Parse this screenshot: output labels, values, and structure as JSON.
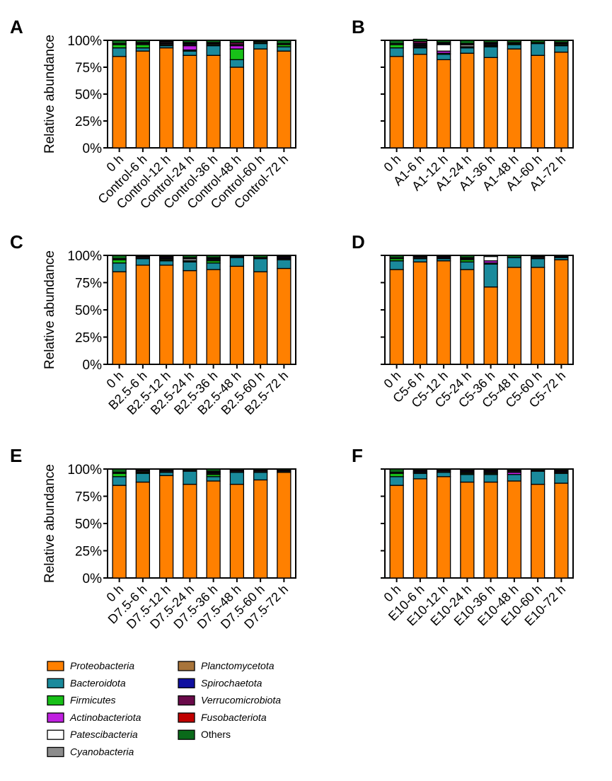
{
  "chart_data": [
    {
      "type": "bar",
      "panel": "A",
      "ylabel": "Relative abundance",
      "yticks": [
        "0%",
        "25%",
        "50%",
        "75%",
        "100%"
      ],
      "ylim": [
        0,
        100
      ],
      "categories": [
        "0 h",
        "Control-6 h",
        "Control-12 h",
        "Control-24 h",
        "Control-36 h",
        "Control-48 h",
        "Control-60 h",
        "Control-72 h"
      ],
      "series": [
        {
          "name": "Proteobacteria",
          "values": [
            85,
            90,
            93,
            86,
            86,
            75,
            92,
            90
          ]
        },
        {
          "name": "Bacteroidota",
          "values": [
            8,
            3,
            2,
            4,
            9,
            7,
            5,
            4
          ]
        },
        {
          "name": "Firmicutes",
          "values": [
            3,
            3,
            1,
            1,
            1,
            10,
            1,
            2
          ]
        },
        {
          "name": "Actinobacteriota",
          "values": [
            0,
            0,
            1,
            4,
            0,
            3,
            0,
            0
          ]
        },
        {
          "name": "Patescibacteria",
          "values": [
            0,
            0,
            0,
            0,
            0,
            0,
            0,
            0
          ]
        },
        {
          "name": "Cyanobacteria",
          "values": [
            1,
            1,
            1,
            1,
            1,
            1,
            1,
            1
          ]
        },
        {
          "name": "Planctomycetota",
          "values": [
            0,
            0,
            0,
            0,
            0,
            0,
            0,
            0
          ]
        },
        {
          "name": "Spirochaetota",
          "values": [
            0,
            0,
            0,
            1,
            0,
            0,
            0,
            0
          ]
        },
        {
          "name": "Verrucomicrobiota",
          "values": [
            0,
            1,
            1,
            1,
            1,
            2,
            0,
            0
          ]
        },
        {
          "name": "Fusobacteriota",
          "values": [
            0,
            0,
            0,
            0,
            0,
            0,
            0,
            0
          ]
        },
        {
          "name": "Others",
          "values": [
            3,
            2,
            1,
            2,
            2,
            2,
            1,
            3
          ]
        }
      ]
    },
    {
      "type": "bar",
      "panel": "B",
      "ylabel": "",
      "yticks": [],
      "ylim": [
        0,
        100
      ],
      "categories": [
        "0 h",
        "A1-6 h",
        "A1-12 h",
        "A1-24 h",
        "A1-36 h",
        "A1-48 h",
        "A1-60 h",
        "A1-72 h"
      ],
      "series": [
        {
          "name": "Proteobacteria",
          "values": [
            85,
            87,
            82,
            88,
            84,
            92,
            86,
            89
          ]
        },
        {
          "name": "Bacteroidota",
          "values": [
            8,
            6,
            5,
            5,
            10,
            4,
            11,
            6
          ]
        },
        {
          "name": "Firmicutes",
          "values": [
            3,
            1,
            1,
            1,
            1,
            1,
            1,
            1
          ]
        },
        {
          "name": "Actinobacteriota",
          "values": [
            0,
            1,
            2,
            0,
            0,
            0,
            0,
            0
          ]
        },
        {
          "name": "Patescibacteria",
          "values": [
            0,
            0,
            6,
            0,
            0,
            0,
            0,
            0
          ]
        },
        {
          "name": "Cyanobacteria",
          "values": [
            1,
            1,
            0,
            2,
            1,
            1,
            0,
            1
          ]
        },
        {
          "name": "Planctomycetota",
          "values": [
            0,
            0,
            0,
            0,
            0,
            0,
            0,
            0
          ]
        },
        {
          "name": "Spirochaetota",
          "values": [
            0,
            1,
            1,
            0,
            1,
            0,
            0,
            0
          ]
        },
        {
          "name": "Verrucomicrobiota",
          "values": [
            0,
            2,
            1,
            1,
            1,
            0,
            0,
            1
          ]
        },
        {
          "name": "Fusobacteriota",
          "values": [
            0,
            0,
            0,
            0,
            0,
            0,
            0,
            0
          ]
        },
        {
          "name": "Others",
          "values": [
            3,
            2,
            2,
            3,
            2,
            2,
            2,
            2
          ]
        }
      ]
    },
    {
      "type": "bar",
      "panel": "C",
      "ylabel": "Relative abundance",
      "yticks": [
        "0%",
        "25%",
        "50%",
        "75%",
        "100%"
      ],
      "ylim": [
        0,
        100
      ],
      "categories": [
        "0 h",
        "B2.5-6 h",
        "B2.5-12 h",
        "B2.5-24 h",
        "B2.5-36 h",
        "B2.5-48 h",
        "B2.5-60 h",
        "B2.5-72 h"
      ],
      "series": [
        {
          "name": "Proteobacteria",
          "values": [
            85,
            91,
            91,
            86,
            87,
            90,
            85,
            88
          ]
        },
        {
          "name": "Bacteroidota",
          "values": [
            8,
            6,
            4,
            8,
            6,
            8,
            12,
            8
          ]
        },
        {
          "name": "Firmicutes",
          "values": [
            3,
            0,
            1,
            1,
            2,
            0,
            0,
            0
          ]
        },
        {
          "name": "Actinobacteriota",
          "values": [
            0,
            0,
            0,
            0,
            0,
            0,
            0,
            0
          ]
        },
        {
          "name": "Patescibacteria",
          "values": [
            0,
            0,
            0,
            0,
            0,
            0,
            0,
            0
          ]
        },
        {
          "name": "Cyanobacteria",
          "values": [
            1,
            1,
            1,
            2,
            1,
            0,
            0,
            1
          ]
        },
        {
          "name": "Planctomycetota",
          "values": [
            0,
            0,
            0,
            0,
            0,
            0,
            0,
            0
          ]
        },
        {
          "name": "Spirochaetota",
          "values": [
            0,
            0,
            1,
            0,
            1,
            0,
            0,
            1
          ]
        },
        {
          "name": "Verrucomicrobiota",
          "values": [
            0,
            1,
            1,
            1,
            1,
            1,
            1,
            1
          ]
        },
        {
          "name": "Fusobacteriota",
          "values": [
            0,
            0,
            0,
            0,
            0,
            0,
            0,
            0
          ]
        },
        {
          "name": "Others",
          "values": [
            3,
            1,
            1,
            2,
            2,
            1,
            2,
            1
          ]
        }
      ]
    },
    {
      "type": "bar",
      "panel": "D",
      "ylabel": "",
      "yticks": [],
      "ylim": [
        0,
        100
      ],
      "categories": [
        "0 h",
        "C5-6 h",
        "C5-12 h",
        "C5-24 h",
        "C5-36 h",
        "C5-48 h",
        "C5-60 h",
        "C5-72 h"
      ],
      "series": [
        {
          "name": "Proteobacteria",
          "values": [
            87,
            94,
            95,
            87,
            71,
            89,
            89,
            96
          ]
        },
        {
          "name": "Bacteroidota",
          "values": [
            8,
            3,
            2,
            7,
            21,
            9,
            8,
            2
          ]
        },
        {
          "name": "Firmicutes",
          "values": [
            2,
            0,
            0,
            2,
            1,
            0,
            0,
            0
          ]
        },
        {
          "name": "Actinobacteriota",
          "values": [
            0,
            0,
            0,
            0,
            2,
            0,
            0,
            0
          ]
        },
        {
          "name": "Patescibacteria",
          "values": [
            0,
            0,
            0,
            0,
            4,
            0,
            0,
            0
          ]
        },
        {
          "name": "Cyanobacteria",
          "values": [
            1,
            1,
            0,
            1,
            0,
            0,
            1,
            0
          ]
        },
        {
          "name": "Planctomycetota",
          "values": [
            0,
            0,
            0,
            0,
            0,
            0,
            0,
            0
          ]
        },
        {
          "name": "Spirochaetota",
          "values": [
            0,
            0,
            1,
            0,
            0,
            0,
            0,
            0
          ]
        },
        {
          "name": "Verrucomicrobiota",
          "values": [
            0,
            1,
            1,
            1,
            0,
            0,
            1,
            1
          ]
        },
        {
          "name": "Fusobacteriota",
          "values": [
            0,
            0,
            0,
            0,
            0,
            0,
            0,
            0
          ]
        },
        {
          "name": "Others",
          "values": [
            2,
            1,
            1,
            2,
            1,
            2,
            1,
            1
          ]
        }
      ]
    },
    {
      "type": "bar",
      "panel": "E",
      "ylabel": "Relative abundance",
      "yticks": [
        "0%",
        "25%",
        "50%",
        "75%",
        "100%"
      ],
      "ylim": [
        0,
        100
      ],
      "categories": [
        "0 h",
        "D7.5-6 h",
        "D7.5-12 h",
        "D7.5-24 h",
        "D7.5-36 h",
        "D7.5-48 h",
        "D7.5-60 h",
        "D7.5-72 h"
      ],
      "series": [
        {
          "name": "Proteobacteria",
          "values": [
            85,
            88,
            94,
            86,
            89,
            86,
            90,
            97
          ]
        },
        {
          "name": "Bacteroidota",
          "values": [
            8,
            8,
            3,
            12,
            4,
            11,
            7,
            1
          ]
        },
        {
          "name": "Firmicutes",
          "values": [
            3,
            1,
            0,
            0,
            2,
            0,
            0,
            0
          ]
        },
        {
          "name": "Actinobacteriota",
          "values": [
            0,
            0,
            0,
            0,
            0,
            0,
            0,
            0
          ]
        },
        {
          "name": "Patescibacteria",
          "values": [
            0,
            0,
            0,
            0,
            0,
            0,
            0,
            0
          ]
        },
        {
          "name": "Cyanobacteria",
          "values": [
            1,
            1,
            1,
            1,
            1,
            1,
            1,
            0
          ]
        },
        {
          "name": "Planctomycetota",
          "values": [
            0,
            0,
            0,
            0,
            0,
            0,
            0,
            0
          ]
        },
        {
          "name": "Spirochaetota",
          "values": [
            0,
            0,
            0,
            0,
            1,
            0,
            0,
            0
          ]
        },
        {
          "name": "Verrucomicrobiota",
          "values": [
            0,
            1,
            1,
            0,
            1,
            1,
            1,
            1
          ]
        },
        {
          "name": "Fusobacteriota",
          "values": [
            0,
            0,
            0,
            0,
            0,
            0,
            0,
            0
          ]
        },
        {
          "name": "Others",
          "values": [
            3,
            1,
            1,
            1,
            2,
            1,
            1,
            1
          ]
        }
      ]
    },
    {
      "type": "bar",
      "panel": "F",
      "ylabel": "",
      "yticks": [],
      "ylim": [
        0,
        100
      ],
      "categories": [
        "0 h",
        "E10-6 h",
        "E10-12 h",
        "E10-24 h",
        "E10-36 h",
        "E10-48 h",
        "E10-60 h",
        "E10-72 h"
      ],
      "series": [
        {
          "name": "Proteobacteria",
          "values": [
            85,
            91,
            93,
            88,
            88,
            89,
            86,
            87
          ]
        },
        {
          "name": "Bacteroidota",
          "values": [
            8,
            5,
            4,
            7,
            7,
            6,
            12,
            9
          ]
        },
        {
          "name": "Firmicutes",
          "values": [
            3,
            0,
            0,
            1,
            1,
            0,
            0,
            0
          ]
        },
        {
          "name": "Actinobacteriota",
          "values": [
            0,
            0,
            0,
            0,
            0,
            2,
            0,
            0
          ]
        },
        {
          "name": "Patescibacteria",
          "values": [
            0,
            0,
            0,
            0,
            0,
            0,
            0,
            0
          ]
        },
        {
          "name": "Cyanobacteria",
          "values": [
            1,
            1,
            1,
            1,
            1,
            1,
            0,
            1
          ]
        },
        {
          "name": "Planctomycetota",
          "values": [
            0,
            0,
            0,
            0,
            0,
            0,
            0,
            0
          ]
        },
        {
          "name": "Spirochaetota",
          "values": [
            0,
            1,
            0,
            1,
            1,
            0,
            0,
            1
          ]
        },
        {
          "name": "Verrucomicrobiota",
          "values": [
            0,
            1,
            1,
            1,
            1,
            1,
            1,
            1
          ]
        },
        {
          "name": "Fusobacteriota",
          "values": [
            0,
            0,
            0,
            0,
            0,
            0,
            0,
            0
          ]
        },
        {
          "name": "Others",
          "values": [
            3,
            1,
            1,
            1,
            1,
            1,
            1,
            1
          ]
        }
      ]
    }
  ],
  "legend": [
    {
      "name": "Proteobacteria",
      "color": "#ff8000",
      "italic": true
    },
    {
      "name": "Bacteroidota",
      "color": "#1a8a9c",
      "italic": true
    },
    {
      "name": "Firmicutes",
      "color": "#18c018",
      "italic": true
    },
    {
      "name": "Actinobacteriota",
      "color": "#c020e0",
      "italic": true
    },
    {
      "name": "Patescibacteria",
      "color": "#ffffff",
      "italic": true
    },
    {
      "name": "Cyanobacteria",
      "color": "#8c8c8c",
      "italic": true
    },
    {
      "name": "Planctomycetota",
      "color": "#a8743a",
      "italic": true
    },
    {
      "name": "Spirochaetota",
      "color": "#1010a0",
      "italic": true
    },
    {
      "name": "Verrucomicrobiota",
      "color": "#6a0a4a",
      "italic": true
    },
    {
      "name": "Fusobacteriota",
      "color": "#c00000",
      "italic": true
    },
    {
      "name": "Others",
      "color": "#0a6a1a",
      "italic": false
    }
  ]
}
